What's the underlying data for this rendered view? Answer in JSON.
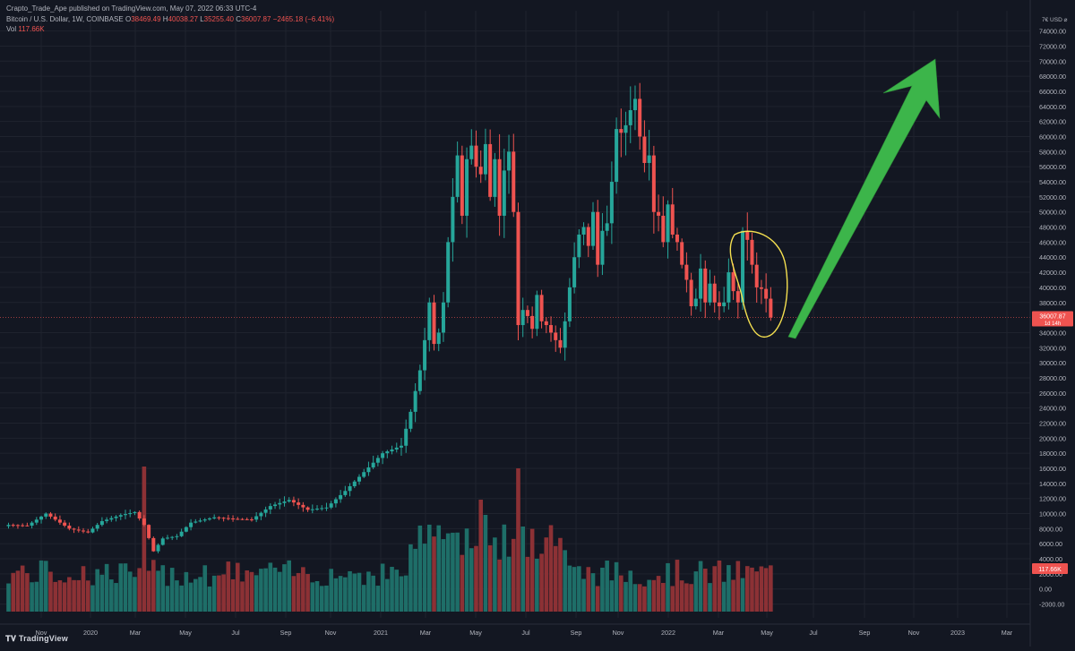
{
  "header": {
    "published": "Crapto_Trade_Ape published on TradingView.com, May 07, 2022 06:33 UTC-4",
    "symbol": "Bitcoin / U.S. Dollar, 1W, COINBASE",
    "o_label": "O",
    "o_value": "38469.49",
    "h_label": "H",
    "h_value": "40038.27",
    "l_label": "L",
    "l_value": "35255.40",
    "c_label": "C",
    "c_value": "36007.87",
    "change": "−2465.18 (−6.41%)",
    "vol_label": "Vol",
    "vol_value": "117.66K"
  },
  "axis_corner": {
    "text": "7€ USD ⌀"
  },
  "price_label": {
    "value": "36007.87",
    "countdown": "1d 14h",
    "color": "#ef5350"
  },
  "volume_label": {
    "value": "117.66K"
  },
  "footer": {
    "logo_text": "TradingView"
  },
  "colors": {
    "background": "#131722",
    "up": "#26a69a",
    "down": "#ef5350",
    "up_volume": "#1e6e68",
    "down_volume": "#8c3135",
    "grid": "#1f232e",
    "arrow": "#3cb54a",
    "highlight_ellipse": "#f5e050",
    "axis_text": "#b2b5be"
  },
  "annotations": {
    "arrow": "green upward arrow (drawn)",
    "ellipse": "yellow freehand ellipse around recent candles"
  },
  "chart_data": {
    "type": "candlestick",
    "title": "",
    "xlabel": "",
    "ylabel": "",
    "x_ticks": [
      "Nov",
      "2020",
      "Mar",
      "May",
      "Jul",
      "Sep",
      "Nov",
      "2021",
      "Mar",
      "May",
      "Jul",
      "Sep",
      "Nov",
      "2022",
      "Mar",
      "May",
      "Jul",
      "Sep",
      "Nov",
      "2023",
      "Mar"
    ],
    "y_ticks": [
      "-2000.00",
      "0.00",
      "2000.00",
      "4000.00",
      "6000.00",
      "8000.00",
      "10000.00",
      "12000.00",
      "14000.00",
      "16000.00",
      "18000.00",
      "20000.00",
      "22000.00",
      "24000.00",
      "26000.00",
      "28000.00",
      "30000.00",
      "32000.00",
      "34000.00",
      "38000.00",
      "40000.00",
      "42000.00",
      "44000.00",
      "46000.00",
      "48000.00",
      "50000.00",
      "52000.00",
      "54000.00",
      "56000.00",
      "58000.00",
      "60000.00",
      "62000.00",
      "64000.00",
      "66000.00",
      "68000.00",
      "70000.00",
      "72000.00",
      "74000.00"
    ],
    "ylim": [
      -3000,
      75500
    ],
    "grid": true,
    "series": [
      {
        "name": "",
        "anchors": [
          [
            0,
            8500
          ],
          [
            4,
            8400
          ],
          [
            8,
            10000
          ],
          [
            13,
            8000
          ],
          [
            17,
            7500
          ],
          [
            20,
            9000
          ],
          [
            24,
            9800
          ],
          [
            27,
            10200
          ],
          [
            29,
            8500
          ],
          [
            31,
            5000
          ],
          [
            33,
            6700
          ],
          [
            36,
            7000
          ],
          [
            39,
            8800
          ],
          [
            44,
            9500
          ],
          [
            48,
            9300
          ],
          [
            52,
            9200
          ],
          [
            56,
            11000
          ],
          [
            60,
            11800
          ],
          [
            64,
            10500
          ],
          [
            68,
            10800
          ],
          [
            72,
            13000
          ],
          [
            76,
            15500
          ],
          [
            80,
            18000
          ],
          [
            84,
            19000
          ],
          [
            86,
            23500
          ],
          [
            88,
            29000
          ],
          [
            89,
            33000
          ],
          [
            90,
            38000
          ],
          [
            91,
            32500
          ],
          [
            92,
            34000
          ],
          [
            93,
            38000
          ],
          [
            94,
            46000
          ],
          [
            95,
            52000
          ],
          [
            96,
            57500
          ],
          [
            97,
            49500
          ],
          [
            98,
            57000
          ],
          [
            99,
            58800
          ],
          [
            100,
            56000
          ],
          [
            101,
            55000
          ],
          [
            102,
            59000
          ],
          [
            103,
            52000
          ],
          [
            104,
            57000
          ],
          [
            105,
            49500
          ],
          [
            106,
            55500
          ],
          [
            107,
            58000
          ],
          [
            108,
            50000
          ],
          [
            109,
            35000
          ],
          [
            110,
            37000
          ],
          [
            111,
            36200
          ],
          [
            112,
            34500
          ],
          [
            113,
            39000
          ],
          [
            114,
            35500
          ],
          [
            115,
            35000
          ],
          [
            116,
            34000
          ],
          [
            117,
            33000
          ],
          [
            118,
            32000
          ],
          [
            119,
            35500
          ],
          [
            120,
            40000
          ],
          [
            121,
            44000
          ],
          [
            122,
            47000
          ],
          [
            123,
            48000
          ],
          [
            124,
            45500
          ],
          [
            125,
            50000
          ],
          [
            126,
            43000
          ],
          [
            127,
            47500
          ],
          [
            128,
            48500
          ],
          [
            129,
            54000
          ],
          [
            130,
            61000
          ],
          [
            131,
            60500
          ],
          [
            132,
            61500
          ],
          [
            133,
            63500
          ],
          [
            134,
            65000
          ],
          [
            135,
            60000
          ],
          [
            136,
            56500
          ],
          [
            137,
            57500
          ],
          [
            138,
            50000
          ],
          [
            139,
            49500
          ],
          [
            140,
            46000
          ],
          [
            141,
            51000
          ],
          [
            142,
            47000
          ],
          [
            143,
            46000
          ],
          [
            144,
            43000
          ],
          [
            145,
            41000
          ],
          [
            146,
            37500
          ],
          [
            147,
            38500
          ],
          [
            148,
            42500
          ],
          [
            149,
            38000
          ],
          [
            150,
            40500
          ],
          [
            151,
            38000
          ],
          [
            152,
            37500
          ],
          [
            153,
            38000
          ],
          [
            154,
            42000
          ],
          [
            155,
            39500
          ],
          [
            156,
            38000
          ],
          [
            157,
            47500
          ],
          [
            158,
            46300
          ],
          [
            159,
            43000
          ],
          [
            160,
            40000
          ],
          [
            161,
            39800
          ],
          [
            162,
            38500
          ],
          [
            163,
            36007
          ]
        ]
      }
    ]
  }
}
